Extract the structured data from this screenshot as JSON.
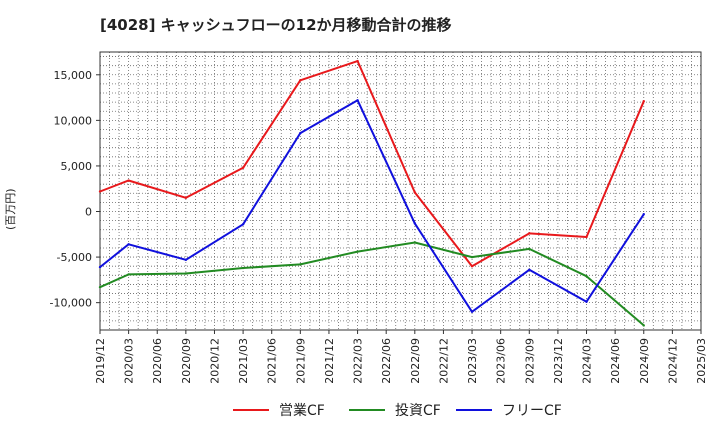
{
  "chart_data": {
    "type": "line",
    "title": "[4028]  キャッシュフローの12か月移動合計の推移",
    "ylabel": "(百万円)",
    "xlabel": "",
    "ylim": [
      -13000,
      17500
    ],
    "yticks": [
      15000,
      10000,
      5000,
      0,
      -5000,
      -10000
    ],
    "ytick_labels": [
      "15,000",
      "10,000",
      "5,000",
      "0",
      "-5,000",
      "-10,000"
    ],
    "x_ticks": [
      "2019/12",
      "2020/03",
      "2020/06",
      "2020/09",
      "2020/12",
      "2021/03",
      "2021/06",
      "2021/09",
      "2021/12",
      "2022/03",
      "2022/06",
      "2022/09",
      "2022/12",
      "2023/03",
      "2023/06",
      "2023/09",
      "2023/12",
      "2024/03",
      "2024/06",
      "2024/09",
      "2024/12",
      "2025/03"
    ],
    "grid": true,
    "legend_position": "bottom",
    "series": [
      {
        "name": "営業CF",
        "color": "#e8191c",
        "x": [
          "2019/12",
          "2020/03",
          "2020/09",
          "2021/03",
          "2021/09",
          "2022/03",
          "2022/09",
          "2023/03",
          "2023/09",
          "2024/03",
          "2024/09"
        ],
        "values": [
          2200,
          3400,
          1500,
          4800,
          14400,
          16500,
          2100,
          -6000,
          -2400,
          -2800,
          12100
        ]
      },
      {
        "name": "投資CF",
        "color": "#228b22",
        "x": [
          "2019/12",
          "2020/03",
          "2020/09",
          "2021/03",
          "2021/09",
          "2022/03",
          "2022/09",
          "2023/03",
          "2023/09",
          "2024/03",
          "2024/09"
        ],
        "values": [
          -8300,
          -6900,
          -6800,
          -6200,
          -5800,
          -4400,
          -3400,
          -5000,
          -4100,
          -7100,
          -12500
        ]
      },
      {
        "name": "フリーCF",
        "color": "#1010dd",
        "x": [
          "2019/12",
          "2020/03",
          "2020/09",
          "2021/03",
          "2021/09",
          "2022/03",
          "2022/09",
          "2023/03",
          "2023/09",
          "2024/03",
          "2024/09"
        ],
        "values": [
          -6100,
          -3600,
          -5300,
          -1400,
          8600,
          12200,
          -1300,
          -11000,
          -6400,
          -9900,
          -300
        ]
      }
    ]
  }
}
